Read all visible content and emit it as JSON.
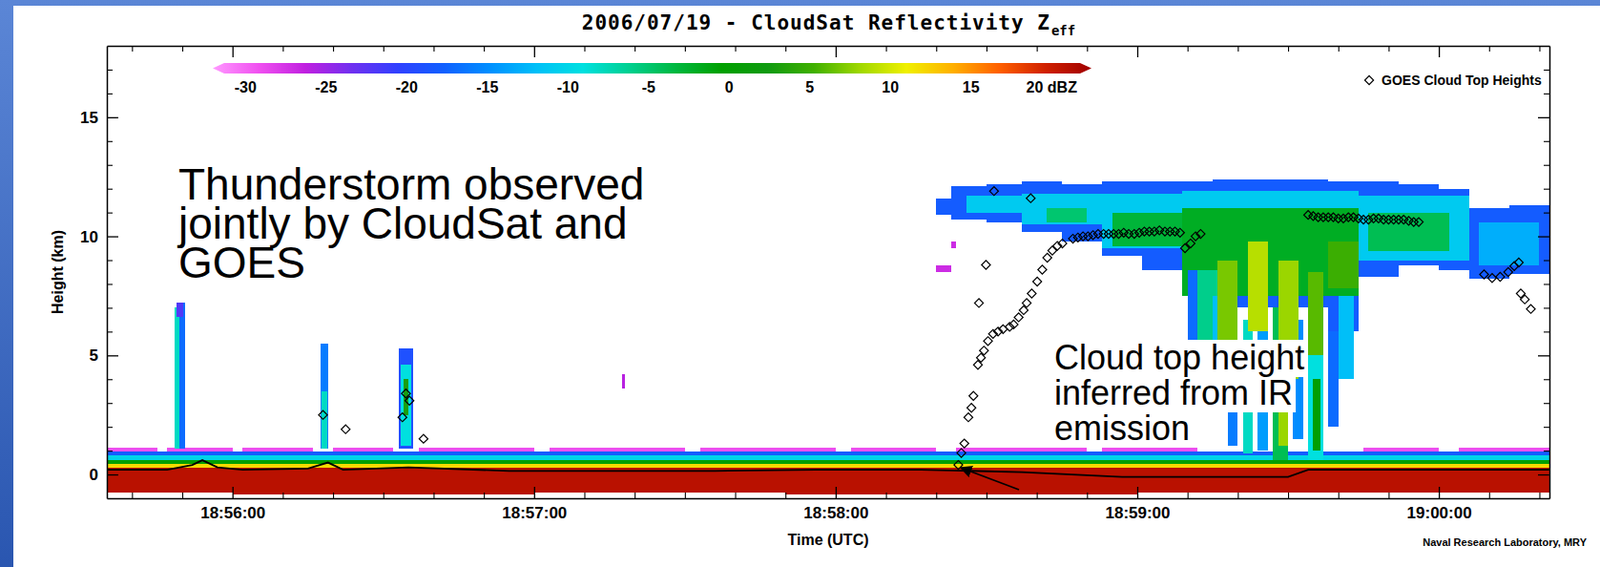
{
  "chart_data": {
    "type": "heatmap",
    "title": "2006/07/19 - CloudSat Reflectivity Z",
    "title_subscript": "eff",
    "xlabel": "Time (UTC)",
    "ylabel": "Height (km)",
    "credit": "Naval Research Laboratory, MRY",
    "xlim": [
      3335,
      3622
    ],
    "ylim": [
      -1,
      18
    ],
    "xticks": [
      {
        "value": 3360,
        "label": "18:56:00"
      },
      {
        "value": 3420,
        "label": "18:57:00"
      },
      {
        "value": 3480,
        "label": "18:58:00"
      },
      {
        "value": 3540,
        "label": "18:59:00"
      },
      {
        "value": 3600,
        "label": "19:00:00"
      }
    ],
    "yticks": [
      0,
      5,
      10,
      15
    ],
    "xminor": [
      3340,
      3350,
      3370,
      3380,
      3390,
      3400,
      3410,
      3430,
      3440,
      3450,
      3460,
      3470,
      3490,
      3500,
      3510,
      3520,
      3530,
      3550,
      3560,
      3570,
      3580,
      3590,
      3610,
      3620
    ],
    "yminor": [
      1,
      2,
      3,
      4,
      6,
      7,
      8,
      9,
      11,
      12,
      13,
      14,
      16,
      17
    ],
    "colorbar": {
      "range": [
        -32,
        22.5
      ],
      "ticks": [
        -30,
        -25,
        -20,
        -15,
        -10,
        -5,
        0,
        5,
        10,
        15,
        {
          "value": 20,
          "label": "20 dBZ"
        }
      ]
    },
    "cells": [
      [
        3335,
        3622,
        -0.75,
        0.3,
        21
      ],
      [
        3350,
        3356,
        0.3,
        0.8,
        21
      ],
      [
        3377,
        3381,
        0.3,
        0.6,
        21
      ],
      [
        3360,
        3420,
        -0.85,
        -0.75,
        21
      ],
      [
        3470,
        3540,
        -0.85,
        -0.75,
        21
      ],
      [
        3335,
        3622,
        0.3,
        0.45,
        12
      ],
      [
        3335,
        3622,
        0.45,
        0.6,
        0
      ],
      [
        3335,
        3622,
        0.6,
        0.8,
        -10
      ],
      [
        3335,
        3622,
        0.8,
        0.95,
        -18
      ],
      [
        3335,
        3345,
        0.95,
        1.12,
        -29
      ],
      [
        3347,
        3360,
        0.95,
        1.12,
        -29
      ],
      [
        3362,
        3376,
        0.95,
        1.12,
        -29
      ],
      [
        3380,
        3392,
        0.95,
        1.12,
        -29
      ],
      [
        3397,
        3420,
        0.95,
        1.12,
        -29
      ],
      [
        3423,
        3450,
        0.95,
        1.12,
        -29
      ],
      [
        3453,
        3480,
        0.95,
        1.12,
        -29
      ],
      [
        3483,
        3500,
        0.95,
        1.12,
        -29
      ],
      [
        3504,
        3530,
        0.95,
        1.12,
        -29
      ],
      [
        3533,
        3552,
        0.95,
        1.12,
        -29
      ],
      [
        3585,
        3600,
        0.95,
        1.12,
        -29
      ],
      [
        3604,
        3622,
        0.95,
        1.12,
        -29
      ],
      [
        3348.5,
        3349.5,
        1.1,
        7.0,
        -8
      ],
      [
        3349.5,
        3350.5,
        1.1,
        7.2,
        -17
      ],
      [
        3348.8,
        3350.2,
        6.6,
        7.2,
        -22
      ],
      [
        3377.5,
        3379,
        1.1,
        5.5,
        -16
      ],
      [
        3377.8,
        3378.8,
        1.1,
        3.5,
        -8
      ],
      [
        3393,
        3396,
        1.1,
        5.3,
        -19
      ],
      [
        3393.5,
        3395.5,
        1.2,
        4.6,
        -9
      ],
      [
        3394,
        3395,
        2.5,
        4.0,
        3
      ],
      [
        3437.5,
        3438,
        3.6,
        4.2,
        -26
      ],
      [
        3500,
        3503,
        10.9,
        11.6,
        -18
      ],
      [
        3503,
        3510,
        10.7,
        12.1,
        -18
      ],
      [
        3510,
        3517,
        10.6,
        12.2,
        -18
      ],
      [
        3517,
        3525,
        10.2,
        12.3,
        -18
      ],
      [
        3525,
        3533,
        9.8,
        12.2,
        -18
      ],
      [
        3533,
        3541,
        9.2,
        12.3,
        -18
      ],
      [
        3541,
        3549,
        8.6,
        12.3,
        -18
      ],
      [
        3549,
        3555,
        8.4,
        12.3,
        -18
      ],
      [
        3555,
        3562,
        7.0,
        12.4,
        -18
      ],
      [
        3562,
        3570,
        7.0,
        12.4,
        -18
      ],
      [
        3570,
        3578,
        7.0,
        12.4,
        -18
      ],
      [
        3578,
        3584,
        6.0,
        12.3,
        -18
      ],
      [
        3584,
        3592,
        8.3,
        12.3,
        -18
      ],
      [
        3592,
        3600,
        8.8,
        12.2,
        -18
      ],
      [
        3600,
        3606,
        8.6,
        12.0,
        -18
      ],
      [
        3606,
        3614,
        8.2,
        11.2,
        -18
      ],
      [
        3614,
        3622,
        8.4,
        11.3,
        -18
      ],
      [
        3506,
        3517,
        11.0,
        11.7,
        -11
      ],
      [
        3517,
        3533,
        10.5,
        11.8,
        -11
      ],
      [
        3533,
        3549,
        9.5,
        11.8,
        -11
      ],
      [
        3549,
        3584,
        8.6,
        11.9,
        -11
      ],
      [
        3584,
        3606,
        9.0,
        11.7,
        -11
      ],
      [
        3608,
        3620,
        8.8,
        10.6,
        -13
      ],
      [
        3522,
        3530,
        10.6,
        11.2,
        -5
      ],
      [
        3535,
        3549,
        9.6,
        11.0,
        -3
      ],
      [
        3549,
        3584,
        7.5,
        11.2,
        -2
      ],
      [
        3586,
        3602,
        9.4,
        11.0,
        -4
      ],
      [
        3550,
        3552,
        5.5,
        8.6,
        -17
      ],
      [
        3552,
        3556,
        4.6,
        8.6,
        -6
      ],
      [
        3555,
        3558,
        3.5,
        7.5,
        -12
      ],
      [
        3558,
        3560,
        1.2,
        7.0,
        -16
      ],
      [
        3561,
        3563,
        0.9,
        6.5,
        -8
      ],
      [
        3564,
        3566,
        1.0,
        6.0,
        -14
      ],
      [
        3567,
        3570,
        0.6,
        7.0,
        -4
      ],
      [
        3571,
        3573,
        1.5,
        6.5,
        -15
      ],
      [
        3574,
        3577,
        0.6,
        5.5,
        -9
      ],
      [
        3578,
        3580,
        2.0,
        6.0,
        -17
      ],
      [
        3580,
        3583,
        4.0,
        7.5,
        -12
      ],
      [
        3568,
        3570,
        1.2,
        3.8,
        8
      ],
      [
        3575,
        3576.5,
        1.0,
        4.0,
        0
      ],
      [
        3556,
        3560,
        5.5,
        9.0,
        7
      ],
      [
        3562,
        3566,
        6.0,
        9.8,
        9
      ],
      [
        3568,
        3572,
        4.0,
        9.0,
        8
      ],
      [
        3574,
        3577,
        5.0,
        8.5,
        6
      ],
      [
        3578,
        3584,
        7.8,
        9.8,
        5
      ],
      [
        3500,
        3503,
        8.5,
        8.8,
        -27
      ],
      [
        3503,
        3504,
        9.5,
        9.8,
        -27
      ]
    ],
    "series": [
      {
        "type": "line",
        "color": "#000000",
        "x": [
          3335,
          3347,
          3352,
          3354,
          3357,
          3362,
          3375,
          3379,
          3382,
          3395,
          3415,
          3456,
          3476,
          3497,
          3517,
          3537,
          3558,
          3570,
          3574,
          3598,
          3622
        ],
        "values": [
          0.2,
          0.2,
          0.4,
          0.6,
          0.3,
          0.2,
          0.25,
          0.5,
          0.2,
          0.3,
          0.15,
          0.15,
          0.2,
          0.2,
          0.1,
          -0.1,
          -0.1,
          -0.1,
          0.2,
          0.2,
          0.2
        ]
      },
      {
        "name": "GOES Cloud Top Heights",
        "type": "scatter",
        "marker": "diamond",
        "color": "#000000",
        "x": [
          3378,
          3382.5,
          3393.8,
          3394.5,
          3395.2,
          3398,
          3504.4,
          3505,
          3505.6,
          3506.4,
          3507,
          3507.4,
          3508.3,
          3508.9,
          3509.5,
          3510.3,
          3511.3,
          3512.3,
          3513.3,
          3514.6,
          3515.4,
          3516.4,
          3517.4,
          3518,
          3519,
          3520.1,
          3521.1,
          3522.1,
          3523.1,
          3524.1,
          3525.1,
          3527.2,
          3529.2,
          3531.2,
          3533.3,
          3535.3,
          3537.3,
          3539.4,
          3541.4,
          3543.4,
          3545.5,
          3547.5,
          3549.5,
          3550.6,
          3551.6,
          3552.6,
          3508.5,
          3509.9,
          3511.5,
          3518.8,
          3574,
          3576,
          3578,
          3580,
          3582,
          3584,
          3586,
          3588,
          3590,
          3592,
          3594,
          3596,
          3609,
          3610.6,
          3612.2,
          3613.8,
          3615,
          3615.9,
          3616.3,
          3617.1,
          3618.3,
          3528.2,
          3530.2,
          3532.2,
          3534.3,
          3536.3,
          3538.3,
          3540.4,
          3542.4,
          3544.4,
          3546.5,
          3548.5,
          3575,
          3577,
          3579,
          3581,
          3583,
          3585,
          3587,
          3589,
          3591,
          3593,
          3595
        ],
        "values": [
          2.5,
          1.9,
          2.4,
          3.4,
          3.1,
          1.5,
          0.4,
          0.9,
          1.3,
          2.4,
          2.8,
          3.3,
          4.6,
          4.9,
          5.2,
          5.6,
          5.9,
          6.0,
          6.1,
          6.2,
          6.3,
          6.6,
          6.9,
          7.2,
          7.6,
          8.1,
          8.6,
          9.1,
          9.4,
          9.6,
          9.7,
          9.9,
          10.0,
          10.05,
          10.1,
          10.1,
          10.15,
          10.1,
          10.2,
          10.2,
          10.2,
          10.2,
          9.5,
          9.7,
          10.0,
          10.1,
          7.2,
          8.8,
          11.9,
          11.6,
          10.9,
          10.8,
          10.8,
          10.75,
          10.8,
          10.75,
          10.7,
          10.75,
          10.7,
          10.7,
          10.65,
          10.6,
          8.4,
          8.25,
          8.3,
          8.5,
          8.75,
          8.9,
          7.6,
          7.35,
          6.95,
          9.95,
          10.0,
          10.1,
          10.1,
          10.1,
          10.1,
          10.15,
          10.2,
          10.25,
          10.2,
          10.15,
          10.85,
          10.8,
          10.8,
          10.75,
          10.8,
          10.7,
          10.75,
          10.7,
          10.7,
          10.7,
          10.6
        ]
      }
    ],
    "legend": "top-right",
    "annotations": [
      {
        "lines": [
          "Thunderstorm observed",
          "jointly by CloudSat and",
          "GOES"
        ]
      },
      {
        "lines": [
          "Cloud top height",
          "inferred from IR",
          "emission"
        ]
      }
    ]
  }
}
